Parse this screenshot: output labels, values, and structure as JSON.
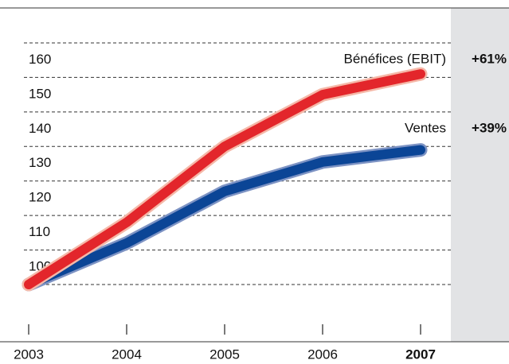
{
  "chart_data": {
    "type": "line",
    "categories": [
      "2003",
      "2004",
      "2005",
      "2006",
      "2007"
    ],
    "series": [
      {
        "name": "Bénéfices (EBIT)",
        "color": "#e3262b",
        "values": [
          100,
          118,
          140,
          155,
          161
        ],
        "annotation": "+61%"
      },
      {
        "name": "Ventes",
        "color": "#0b4596",
        "values": [
          100,
          112,
          127,
          135.5,
          139
        ],
        "annotation": "+39%"
      }
    ],
    "ylim": [
      100,
      170
    ],
    "yticks": [
      100,
      110,
      120,
      130,
      140,
      150,
      160
    ],
    "grid": true
  }
}
